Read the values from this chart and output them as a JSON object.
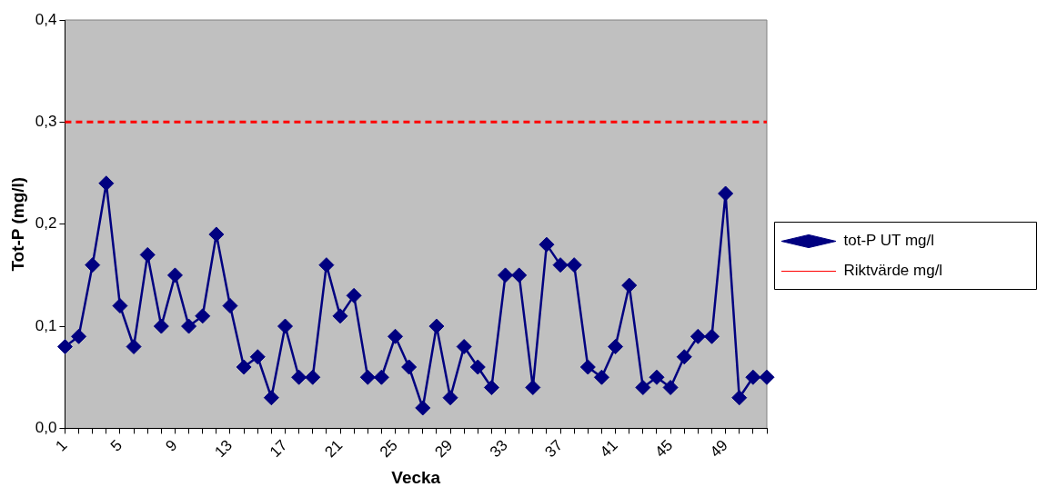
{
  "chart_data": {
    "type": "line",
    "xlabel": "Vecka",
    "ylabel": "Tot-P (mg/l)",
    "categories": [
      "1",
      null,
      null,
      null,
      "5",
      null,
      null,
      null,
      "9",
      null,
      null,
      null,
      "13",
      null,
      null,
      null,
      "17",
      null,
      null,
      null,
      "21",
      null,
      null,
      null,
      "25",
      null,
      null,
      null,
      "29",
      null,
      null,
      null,
      "33",
      null,
      null,
      null,
      "37",
      null,
      null,
      null,
      "41",
      null,
      null,
      null,
      "45",
      null,
      null,
      null,
      "49",
      null,
      null,
      null
    ],
    "series": [
      {
        "name": "tot-P UT mg/l",
        "color": "#000080",
        "marker": "diamond",
        "line_style": "solid",
        "values": [
          0.08,
          0.09,
          0.16,
          0.24,
          0.12,
          0.08,
          0.17,
          0.1,
          0.15,
          0.1,
          0.11,
          0.19,
          0.12,
          0.06,
          0.07,
          0.03,
          0.1,
          0.05,
          0.05,
          0.16,
          0.11,
          0.13,
          0.05,
          0.05,
          0.09,
          0.06,
          0.02,
          0.1,
          0.03,
          0.08,
          0.06,
          0.04,
          0.15,
          0.15,
          0.04,
          0.18,
          0.16,
          0.16,
          0.06,
          0.05,
          0.08,
          0.14,
          0.04,
          0.05,
          0.04,
          0.07,
          0.09,
          0.09,
          0.23,
          0.03,
          0.05,
          0.05
        ]
      },
      {
        "name": "Riktvärde mg/l",
        "color": "#ff0000",
        "marker": "none",
        "line_style": "dashed",
        "values": [
          0.3,
          0.3,
          0.3,
          0.3,
          0.3,
          0.3,
          0.3,
          0.3,
          0.3,
          0.3,
          0.3,
          0.3,
          0.3,
          0.3,
          0.3,
          0.3,
          0.3,
          0.3,
          0.3,
          0.3,
          0.3,
          0.3,
          0.3,
          0.3,
          0.3,
          0.3,
          0.3,
          0.3,
          0.3,
          0.3,
          0.3,
          0.3,
          0.3,
          0.3,
          0.3,
          0.3,
          0.3,
          0.3,
          0.3,
          0.3,
          0.3,
          0.3,
          0.3,
          0.3,
          0.3,
          0.3,
          0.3,
          0.3,
          0.3,
          0.3,
          0.3,
          0.3
        ]
      }
    ],
    "ylim": [
      0,
      0.4
    ],
    "yticks": [
      {
        "value": 0,
        "label": "0,0"
      },
      {
        "value": 0.1,
        "label": "0,1"
      },
      {
        "value": 0.2,
        "label": "0,2"
      },
      {
        "value": 0.3,
        "label": "0,3"
      },
      {
        "value": 0.4,
        "label": "0,4"
      }
    ],
    "grid": false,
    "legend": "right"
  }
}
